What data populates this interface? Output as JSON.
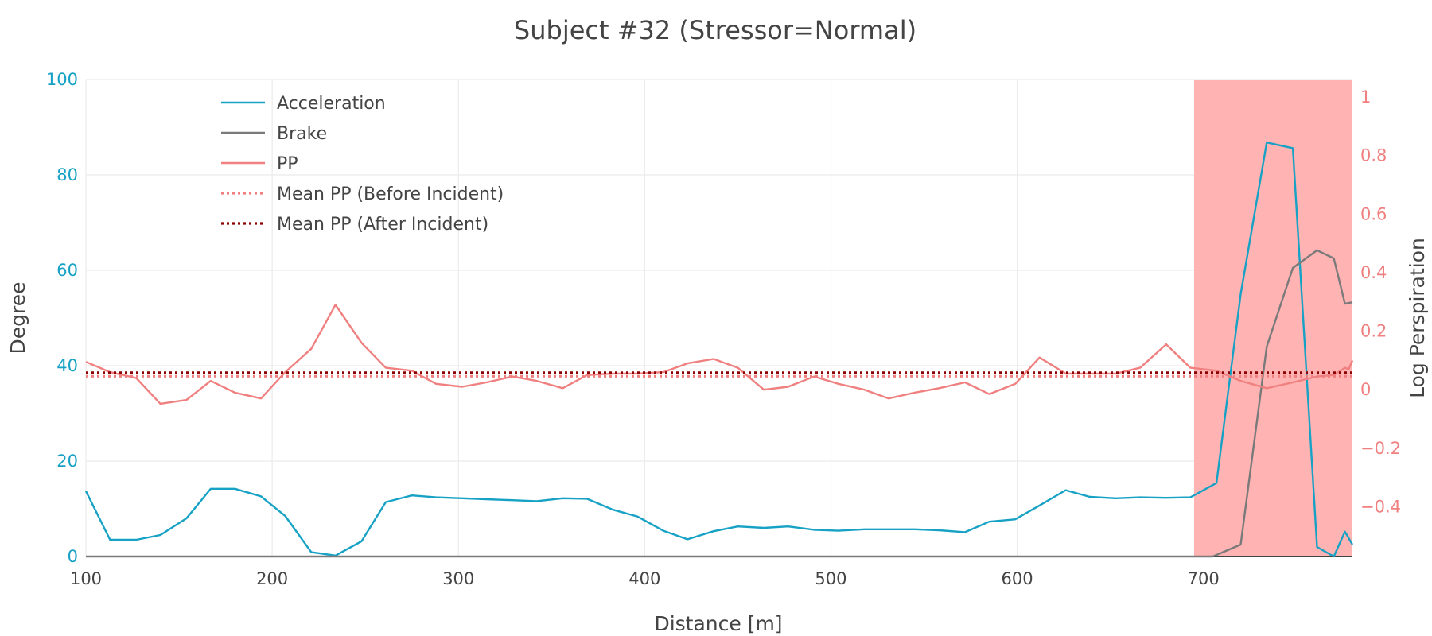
{
  "chart_data": {
    "type": "line",
    "title": "Subject #32 (Stressor=Normal)",
    "xlabel": "Distance [m]",
    "ylabel": "Degree",
    "y2label": "Log Perspiration",
    "xlim": [
      100,
      780
    ],
    "ylim": [
      0,
      100
    ],
    "y2lim": [
      -0.57,
      1.06
    ],
    "x_ticks": [
      100,
      200,
      300,
      400,
      500,
      600,
      700
    ],
    "x_tick_labels": [
      "100",
      "200",
      "300",
      "400",
      "500",
      "600",
      "700"
    ],
    "y_ticks": [
      0,
      20,
      40,
      60,
      80,
      100
    ],
    "y_tick_labels": [
      "0",
      "20",
      "40",
      "60",
      "80",
      "100"
    ],
    "y2_ticks": [
      -0.4,
      -0.2,
      0,
      0.2,
      0.4,
      0.6,
      0.8,
      1
    ],
    "y2_tick_labels": [
      "−0.4",
      "−0.2",
      "0",
      "0.2",
      "0.4",
      "0.6",
      "0.8",
      "1"
    ],
    "grid": true,
    "legend_position": "top-left",
    "incident_region": {
      "x_start": 695,
      "x_end": 780,
      "color": "#ffb3b3"
    },
    "series": [
      {
        "name": "Acceleration",
        "axis": "y",
        "color": "#17a2c5",
        "style": "solid",
        "x": [
          100,
          113,
          127,
          140,
          154,
          167,
          180,
          194,
          207,
          221,
          234,
          248,
          261,
          275,
          288,
          302,
          315,
          329,
          342,
          356,
          369,
          383,
          396,
          410,
          423,
          437,
          450,
          464,
          477,
          491,
          504,
          518,
          531,
          545,
          558,
          572,
          585,
          599,
          612,
          626,
          639,
          653,
          666,
          680,
          693,
          707,
          720,
          734,
          748,
          761,
          770,
          776,
          780
        ],
        "y": [
          13.7,
          3.5,
          3.5,
          4.5,
          8,
          14.2,
          14.2,
          12.6,
          8.5,
          0.9,
          0.2,
          3.2,
          11.4,
          12.8,
          12.4,
          12.2,
          12,
          11.8,
          11.6,
          12.2,
          12.1,
          9.8,
          8.4,
          5.4,
          3.6,
          5.3,
          6.3,
          6,
          6.3,
          5.6,
          5.4,
          5.7,
          5.7,
          5.7,
          5.5,
          5.1,
          7.3,
          7.8,
          10.7,
          13.9,
          12.5,
          12.2,
          12.4,
          12.3,
          12.4,
          15.4,
          55,
          86.8,
          85.6,
          2,
          0,
          5.2,
          2.5
        ]
      },
      {
        "name": "Brake",
        "axis": "y",
        "color": "#7a7a7a",
        "style": "solid",
        "x": [
          100,
          690,
          705,
          720,
          734,
          748,
          761,
          770,
          776,
          780
        ],
        "y": [
          0,
          0,
          0,
          2.5,
          44,
          60.5,
          64.2,
          62.5,
          53,
          53.3
        ]
      },
      {
        "name": "PP",
        "axis": "y2",
        "color": "#f08080",
        "style": "solid",
        "x": [
          100,
          113,
          127,
          140,
          154,
          167,
          180,
          194,
          207,
          221,
          234,
          248,
          261,
          275,
          288,
          302,
          315,
          329,
          342,
          356,
          369,
          383,
          396,
          410,
          423,
          437,
          450,
          464,
          477,
          491,
          504,
          518,
          531,
          545,
          558,
          572,
          585,
          599,
          612,
          626,
          639,
          653,
          666,
          680,
          693,
          707,
          720,
          734,
          748,
          761,
          770,
          776,
          778,
          780
        ],
        "y": [
          0.095,
          0.06,
          0.04,
          -0.048,
          -0.035,
          0.03,
          -0.01,
          -0.03,
          0.06,
          0.14,
          0.29,
          0.16,
          0.075,
          0.065,
          0.02,
          0.01,
          0.025,
          0.045,
          0.03,
          0.005,
          0.05,
          0.055,
          0.055,
          0.06,
          0.09,
          0.105,
          0.075,
          0,
          0.01,
          0.045,
          0.02,
          0,
          -0.03,
          -0.01,
          0.005,
          0.025,
          -0.015,
          0.02,
          0.11,
          0.055,
          0.055,
          0.055,
          0.075,
          0.155,
          0.075,
          0.065,
          0.03,
          0.005,
          0.025,
          0.045,
          0.05,
          0.075,
          0.07,
          0.1
        ]
      },
      {
        "name": "Mean PP (Before Incident)",
        "axis": "y2",
        "color": "#f08080",
        "style": "dot",
        "x": [
          100,
          780
        ],
        "y": [
          0.046,
          0.046
        ]
      },
      {
        "name": "Mean PP (After Incident)",
        "axis": "y2",
        "color": "#8b0000",
        "style": "dot",
        "x": [
          100,
          780
        ],
        "y": [
          0.058,
          0.058
        ]
      }
    ]
  }
}
